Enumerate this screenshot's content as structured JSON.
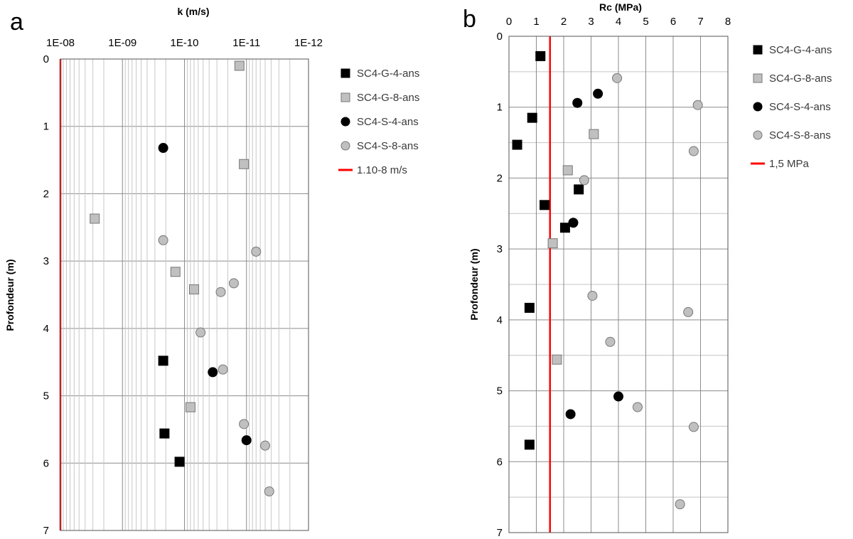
{
  "chart_data": [
    {
      "panel_label": "a",
      "type": "scatter",
      "xlabel": "k (m/s)",
      "ylabel": "Profondeur (m)",
      "x_scale": "log",
      "x_reversed": true,
      "xlim": [
        1e-08,
        1e-12
      ],
      "ylim": [
        0,
        7
      ],
      "y_reversed": true,
      "x_tick_labels": [
        "1E-08",
        "1E-09",
        "1E-10",
        "1E-11",
        "1E-12"
      ],
      "y_tick_labels": [
        "0",
        "1",
        "2",
        "3",
        "4",
        "5",
        "6",
        "7"
      ],
      "grid": true,
      "legend_position": "right",
      "series": [
        {
          "name": "SC4-G-4-ans",
          "marker": "square",
          "color": "#000000",
          "points": [
            {
              "x": 2.2e-10,
              "y": 4.48
            },
            {
              "x": 2.1e-10,
              "y": 5.56
            },
            {
              "x": 1.2e-10,
              "y": 5.98
            }
          ]
        },
        {
          "name": "SC4-G-8-ans",
          "marker": "square",
          "color": "#c0c0c0",
          "points": [
            {
              "x": 1.3e-11,
              "y": 0.1
            },
            {
              "x": 1.1e-11,
              "y": 1.56
            },
            {
              "x": 2.8e-09,
              "y": 2.37
            },
            {
              "x": 1.4e-10,
              "y": 3.16
            },
            {
              "x": 7e-11,
              "y": 3.42
            },
            {
              "x": 8e-11,
              "y": 5.17
            }
          ]
        },
        {
          "name": "SC4-S-4-ans",
          "marker": "circle",
          "color": "#000000",
          "points": [
            {
              "x": 2.2e-10,
              "y": 1.32
            },
            {
              "x": 3.5e-11,
              "y": 4.65
            },
            {
              "x": 1e-11,
              "y": 5.66
            }
          ]
        },
        {
          "name": "SC4-S-8-ans",
          "marker": "circle",
          "color": "#c0c0c0",
          "points": [
            {
              "x": 2.2e-10,
              "y": 2.69
            },
            {
              "x": 7e-12,
              "y": 2.86
            },
            {
              "x": 1.6e-11,
              "y": 3.33
            },
            {
              "x": 2.6e-11,
              "y": 3.46
            },
            {
              "x": 5.5e-11,
              "y": 4.06
            },
            {
              "x": 2.4e-11,
              "y": 4.61
            },
            {
              "x": 1.1e-11,
              "y": 5.42
            },
            {
              "x": 5e-12,
              "y": 5.74
            },
            {
              "x": 4.3e-12,
              "y": 6.42
            }
          ]
        }
      ],
      "reference_line": {
        "name": "1.10-8 m/s",
        "x": 1e-08,
        "color": "#ff0000"
      }
    },
    {
      "panel_label": "b",
      "type": "scatter",
      "xlabel": "Rc (MPa)",
      "ylabel": "Profondeur (m)",
      "x_scale": "linear",
      "xlim": [
        0,
        8
      ],
      "ylim": [
        0,
        7
      ],
      "y_reversed": true,
      "x_tick_labels": [
        "0",
        "1",
        "2",
        "3",
        "4",
        "5",
        "6",
        "7",
        "8"
      ],
      "y_tick_labels": [
        "0",
        "1",
        "2",
        "3",
        "4",
        "5",
        "6",
        "7"
      ],
      "grid": true,
      "legend_position": "right",
      "series": [
        {
          "name": "SC4-G-4-ans",
          "marker": "square",
          "color": "#000000",
          "points": [
            {
              "x": 1.15,
              "y": 0.28
            },
            {
              "x": 0.85,
              "y": 1.15
            },
            {
              "x": 0.3,
              "y": 1.53
            },
            {
              "x": 2.55,
              "y": 2.16
            },
            {
              "x": 1.3,
              "y": 2.38
            },
            {
              "x": 2.05,
              "y": 2.7
            },
            {
              "x": 0.75,
              "y": 3.83
            },
            {
              "x": 0.75,
              "y": 5.76
            }
          ]
        },
        {
          "name": "SC4-G-8-ans",
          "marker": "square",
          "color": "#c0c0c0",
          "points": [
            {
              "x": 3.1,
              "y": 1.38
            },
            {
              "x": 2.15,
              "y": 1.89
            },
            {
              "x": 1.6,
              "y": 2.92
            },
            {
              "x": 1.75,
              "y": 4.56
            }
          ]
        },
        {
          "name": "SC4-S-4-ans",
          "marker": "circle",
          "color": "#000000",
          "points": [
            {
              "x": 3.25,
              "y": 0.81
            },
            {
              "x": 2.5,
              "y": 0.94
            },
            {
              "x": 2.35,
              "y": 2.63
            },
            {
              "x": 4.0,
              "y": 5.08
            },
            {
              "x": 2.25,
              "y": 5.33
            }
          ]
        },
        {
          "name": "SC4-S-8-ans",
          "marker": "circle",
          "color": "#c0c0c0",
          "points": [
            {
              "x": 3.95,
              "y": 0.59
            },
            {
              "x": 6.9,
              "y": 0.97
            },
            {
              "x": 6.75,
              "y": 1.62
            },
            {
              "x": 2.75,
              "y": 2.03
            },
            {
              "x": 3.05,
              "y": 3.66
            },
            {
              "x": 6.55,
              "y": 3.89
            },
            {
              "x": 3.7,
              "y": 4.31
            },
            {
              "x": 4.7,
              "y": 5.23
            },
            {
              "x": 6.75,
              "y": 5.51
            },
            {
              "x": 6.25,
              "y": 6.6
            }
          ]
        }
      ],
      "reference_line": {
        "name": "1,5 MPa",
        "x": 1.5,
        "color": "#ff0000"
      }
    }
  ]
}
